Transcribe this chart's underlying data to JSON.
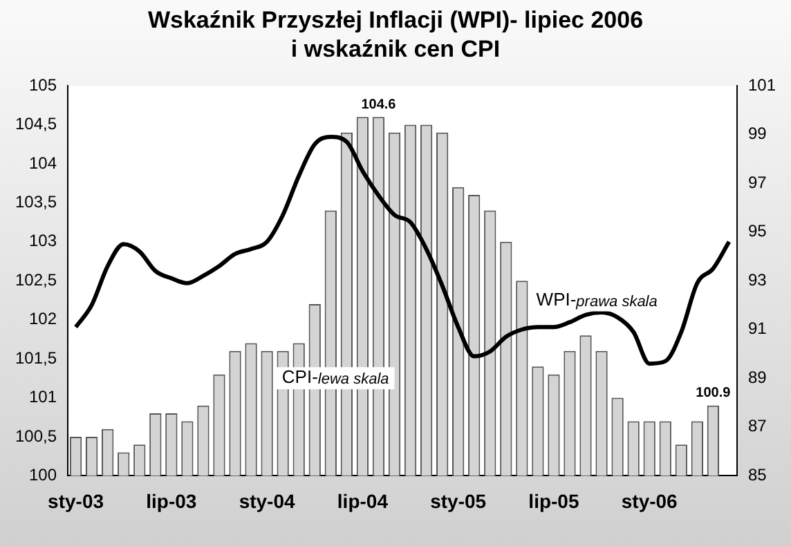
{
  "chart_data": {
    "type": "bar",
    "title": "Wskaźnik Przyszłej Inflacji (WPI)- lipiec 2006\ni wskaźnik cen CPI",
    "categories": [
      "sty-03",
      null,
      null,
      null,
      null,
      null,
      "lip-03",
      null,
      null,
      null,
      null,
      null,
      "sty-04",
      null,
      null,
      null,
      null,
      null,
      "lip-04",
      null,
      null,
      null,
      null,
      null,
      "sty-05",
      null,
      null,
      null,
      null,
      null,
      "lip-05",
      null,
      null,
      null,
      null,
      null,
      "sty-06",
      null,
      null,
      null,
      null,
      null
    ],
    "series": [
      {
        "name": "CPI-lewa skala",
        "color": "#d4d4d4",
        "values": [
          100.5,
          100.5,
          100.6,
          100.3,
          100.4,
          100.8,
          100.8,
          100.7,
          100.9,
          101.3,
          101.6,
          101.7,
          101.6,
          101.6,
          101.7,
          102.2,
          103.4,
          104.4,
          104.6,
          104.6,
          104.4,
          104.5,
          104.5,
          104.4,
          103.7,
          103.6,
          103.4,
          103.0,
          102.5,
          101.4,
          101.3,
          101.6,
          101.8,
          101.6,
          101.0,
          100.7,
          100.7,
          100.7,
          100.4,
          100.7,
          100.9,
          null
        ],
        "value_labels": [
          null,
          null,
          null,
          null,
          null,
          null,
          null,
          null,
          null,
          null,
          null,
          null,
          null,
          null,
          null,
          null,
          null,
          null,
          null,
          "104.6",
          null,
          null,
          null,
          null,
          null,
          null,
          null,
          null,
          null,
          null,
          null,
          null,
          null,
          null,
          null,
          null,
          null,
          null,
          null,
          null,
          "100.9",
          null
        ]
      },
      {
        "name": "WPI-prawa skala",
        "type": "line",
        "axis": "y2",
        "color": "#000000",
        "values": [
          91.1,
          92.0,
          93.6,
          94.5,
          94.2,
          93.4,
          93.1,
          92.9,
          93.2,
          93.6,
          94.1,
          94.3,
          94.6,
          95.7,
          97.3,
          98.6,
          98.9,
          98.7,
          97.5,
          96.5,
          95.7,
          95.4,
          94.3,
          92.8,
          91.1,
          89.9,
          90.1,
          90.7,
          91.0,
          91.1,
          91.1,
          91.3,
          91.6,
          91.7,
          91.5,
          90.9,
          89.6,
          89.7,
          90.9,
          92.9,
          93.5,
          94.6
        ]
      }
    ],
    "ylim": [
      100,
      105
    ],
    "yticks": [
      100,
      {
        "value": 100.5,
        "label": "100,5"
      },
      101,
      {
        "value": 101.5,
        "label": "101,5"
      },
      102,
      {
        "value": 102.5,
        "label": "102,5"
      },
      103,
      {
        "value": 103.5,
        "label": "103,5"
      },
      104,
      {
        "value": 104.5,
        "label": "104,5"
      },
      105
    ],
    "y2lim": [
      85,
      101
    ],
    "y2ticks": [
      85,
      87,
      89,
      91,
      93,
      95,
      97,
      99,
      101
    ],
    "grid": false,
    "legend": false,
    "marker": "none",
    "line_style": "solid"
  }
}
